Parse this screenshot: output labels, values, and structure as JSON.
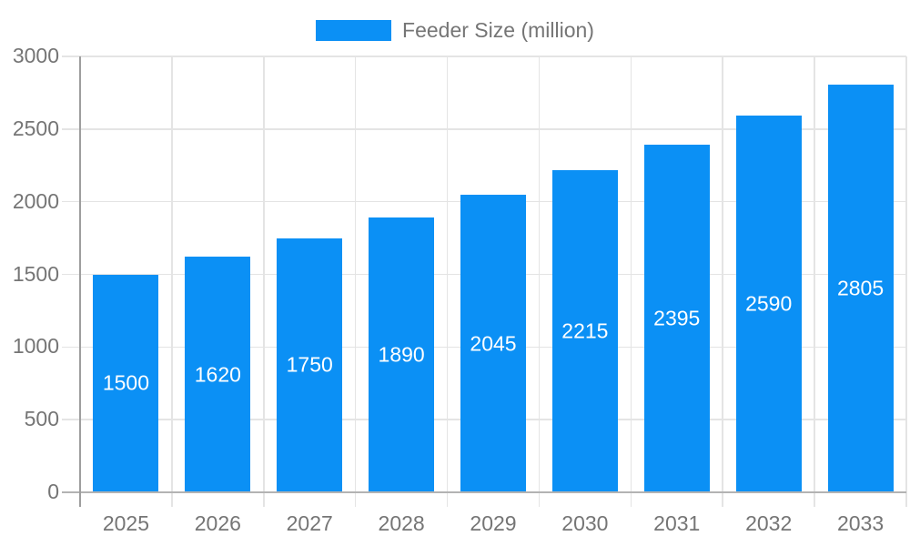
{
  "chart_data": {
    "type": "bar",
    "title": "",
    "legend": {
      "label": "Feeder Size (million)",
      "position": "top"
    },
    "categories": [
      "2025",
      "2026",
      "2027",
      "2028",
      "2029",
      "2030",
      "2031",
      "2032",
      "2033"
    ],
    "series": [
      {
        "name": "Feeder Size (million)",
        "values": [
          1500,
          1620,
          1750,
          1890,
          2045,
          2215,
          2395,
          2590,
          2805
        ]
      }
    ],
    "yticks": [
      0,
      500,
      1000,
      1500,
      2000,
      2500,
      3000
    ],
    "ylim": [
      0,
      3000
    ],
    "grid": true,
    "value_labels_inside_bars": true,
    "colors": {
      "bar": "#0b90f5",
      "axis_text": "#757575",
      "gridline": "#e4e4e4",
      "baseline": "#b3b3b3",
      "axis_line": "#9e9e9e",
      "value_label": "#ffffff",
      "background": "#ffffff"
    }
  }
}
